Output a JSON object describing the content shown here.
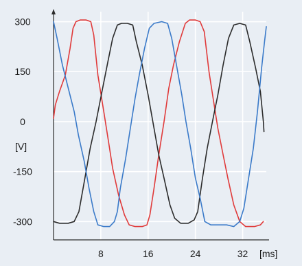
{
  "chart_data": {
    "type": "line",
    "title": "",
    "xlabel": "",
    "ylabel": "",
    "y_unit": "[V]",
    "x_unit": "[ms]",
    "xlim": [
      0,
      36
    ],
    "ylim": [
      -355,
      330
    ],
    "x_ticks": [
      8,
      16,
      24,
      32
    ],
    "x_tick_labels": [
      "8",
      "16",
      "24",
      "32"
    ],
    "y_ticks": [
      300,
      150,
      0,
      -150,
      -300
    ],
    "y_tick_labels": [
      "300",
      "150",
      "0",
      "-150",
      "-300"
    ],
    "grid": true,
    "legend": "none",
    "colors": {
      "background": "#e9eef4",
      "grid": "#ffffff",
      "axis": "#2b2b2b"
    },
    "series": [
      {
        "color": "#e03a3a",
        "points": [
          [
            0,
            10
          ],
          [
            0.3,
            50
          ],
          [
            1,
            90
          ],
          [
            2,
            140
          ],
          [
            2.8,
            220
          ],
          [
            3.3,
            280
          ],
          [
            3.8,
            300
          ],
          [
            4.5,
            305
          ],
          [
            5.5,
            305
          ],
          [
            6.3,
            300
          ],
          [
            6.8,
            260
          ],
          [
            7.5,
            140
          ],
          [
            8.5,
            30
          ],
          [
            9.3,
            -60
          ],
          [
            10,
            -140
          ],
          [
            11,
            -220
          ],
          [
            12,
            -280
          ],
          [
            12.8,
            -310
          ],
          [
            13.8,
            -315
          ],
          [
            15,
            -315
          ],
          [
            15.8,
            -310
          ],
          [
            16.3,
            -280
          ],
          [
            17,
            -200
          ],
          [
            17.8,
            -100
          ],
          [
            18.7,
            0
          ],
          [
            19.5,
            100
          ],
          [
            20.3,
            170
          ],
          [
            21.3,
            240
          ],
          [
            22.3,
            295
          ],
          [
            23,
            305
          ],
          [
            24,
            305
          ],
          [
            24.8,
            300
          ],
          [
            25.5,
            270
          ],
          [
            26.3,
            150
          ],
          [
            27,
            70
          ],
          [
            27.8,
            -20
          ],
          [
            28.7,
            -100
          ],
          [
            29.5,
            -170
          ],
          [
            30.5,
            -250
          ],
          [
            31.5,
            -300
          ],
          [
            32.5,
            -315
          ],
          [
            34,
            -315
          ],
          [
            35,
            -310
          ],
          [
            35.5,
            -300
          ]
        ]
      },
      {
        "color": "#2b2b2b",
        "points": [
          [
            0,
            -300
          ],
          [
            1,
            -305
          ],
          [
            2.5,
            -305
          ],
          [
            3.5,
            -300
          ],
          [
            4.3,
            -270
          ],
          [
            5.2,
            -180
          ],
          [
            6.2,
            -80
          ],
          [
            7.2,
            0
          ],
          [
            8.3,
            100
          ],
          [
            9.2,
            180
          ],
          [
            10,
            250
          ],
          [
            10.8,
            290
          ],
          [
            11.5,
            295
          ],
          [
            12.5,
            295
          ],
          [
            13.4,
            290
          ],
          [
            14,
            240
          ],
          [
            15,
            170
          ],
          [
            16,
            80
          ],
          [
            17,
            -20
          ],
          [
            17.8,
            -100
          ],
          [
            18.7,
            -170
          ],
          [
            19.7,
            -250
          ],
          [
            20.5,
            -290
          ],
          [
            21.5,
            -305
          ],
          [
            22.8,
            -305
          ],
          [
            23.8,
            -295
          ],
          [
            24.4,
            -270
          ],
          [
            25.2,
            -170
          ],
          [
            26,
            -80
          ],
          [
            27,
            10
          ],
          [
            27.8,
            80
          ],
          [
            28.7,
            170
          ],
          [
            29.6,
            250
          ],
          [
            30.5,
            290
          ],
          [
            31.5,
            295
          ],
          [
            32.5,
            290
          ],
          [
            33.2,
            240
          ],
          [
            34.2,
            160
          ],
          [
            35,
            90
          ],
          [
            35.5,
            0
          ],
          [
            35.6,
            -30
          ]
        ]
      },
      {
        "color": "#3a7ac9",
        "points": [
          [
            0,
            300
          ],
          [
            0.6,
            250
          ],
          [
            1.5,
            170
          ],
          [
            2.5,
            100
          ],
          [
            3.5,
            30
          ],
          [
            4.2,
            -40
          ],
          [
            5.2,
            -120
          ],
          [
            6,
            -200
          ],
          [
            6.8,
            -270
          ],
          [
            7.5,
            -310
          ],
          [
            8.5,
            -315
          ],
          [
            9.5,
            -315
          ],
          [
            10.3,
            -300
          ],
          [
            10.8,
            -270
          ],
          [
            11.3,
            -200
          ],
          [
            12.2,
            -110
          ],
          [
            13,
            -20
          ],
          [
            13.8,
            70
          ],
          [
            14.5,
            140
          ],
          [
            15.4,
            220
          ],
          [
            16.2,
            280
          ],
          [
            17,
            295
          ],
          [
            18.3,
            300
          ],
          [
            19.3,
            295
          ],
          [
            20,
            250
          ],
          [
            20.8,
            170
          ],
          [
            21.7,
            80
          ],
          [
            22.4,
            0
          ],
          [
            23.2,
            -80
          ],
          [
            24,
            -170
          ],
          [
            24.8,
            -230
          ],
          [
            25.6,
            -300
          ],
          [
            26.6,
            -310
          ],
          [
            28.5,
            -310
          ],
          [
            29.3,
            -310
          ],
          [
            30.5,
            -315
          ],
          [
            31.5,
            -300
          ],
          [
            32.2,
            -260
          ],
          [
            33,
            -170
          ],
          [
            33.8,
            -80
          ],
          [
            34.5,
            30
          ],
          [
            35.2,
            160
          ],
          [
            35.7,
            240
          ],
          [
            36,
            285
          ]
        ]
      }
    ]
  }
}
